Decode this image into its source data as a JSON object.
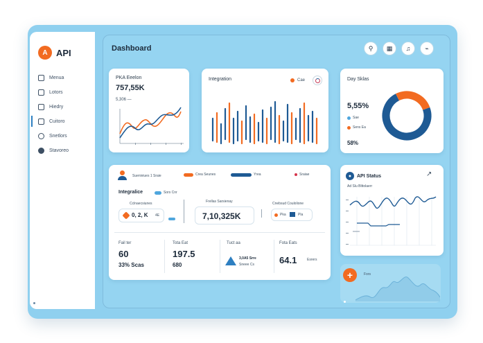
{
  "brand": {
    "logo_letter": "A",
    "name": "API"
  },
  "sidebar": {
    "items": [
      {
        "label": "Menua",
        "icon": "home-icon"
      },
      {
        "label": "Lotors",
        "icon": "layers-icon"
      },
      {
        "label": "Hiedry",
        "icon": "history-icon"
      },
      {
        "label": "Cuitoro",
        "icon": "chart-icon"
      },
      {
        "label": "Snetlors",
        "icon": "settings-icon"
      },
      {
        "label": "Stavoreo",
        "icon": "user-icon"
      }
    ]
  },
  "header": {
    "title": "Dashboard",
    "icons": [
      {
        "name": "profile-icon",
        "glyph": "⚲"
      },
      {
        "name": "apps-icon",
        "glyph": "▦"
      },
      {
        "name": "notification-icon",
        "glyph": "♫"
      },
      {
        "name": "activity-icon",
        "glyph": "⌁"
      }
    ]
  },
  "kpi_card": {
    "title": "PKA Eeelon",
    "value": "757,55K",
    "sub": "5,306 —"
  },
  "integration_card": {
    "title": "Integration",
    "legend": "Cae"
  },
  "daily_card": {
    "title": "Day Sklas",
    "percent": "5,55%",
    "legend": [
      "Sae",
      "Sens Ea"
    ],
    "bottom": "58%",
    "donut": {
      "orange_fraction": 0.27,
      "blue_fraction": 0.73
    }
  },
  "wide_card": {
    "legend_top": [
      "Sueniviues 1 Sraie",
      "Crea Seunes",
      "Yrea",
      "Sraiae"
    ],
    "section_title": "Integralice",
    "section_badge": "Sors Cnr",
    "metric_left": {
      "label": "Cclnaecsiunes",
      "value": "0, 2, K",
      "tag": "4E"
    },
    "metric_mid": {
      "label": "Frellas Sarsienay",
      "value": "7,10,325K"
    },
    "metric_right": {
      "label": "Cnebsud Coulolione",
      "tag1": "Pka",
      "tag2": "Pla"
    },
    "stats": [
      {
        "label": "Fail ter",
        "value": "60",
        "sub": "33% Scas"
      },
      {
        "label": "Tota Eat",
        "value": "197.5",
        "sub": "680"
      },
      {
        "label": "Tuct aa",
        "value": "",
        "sub": "3,0A5 Srre",
        "sub2": "Sneee Cs"
      },
      {
        "label": "Fota Eats",
        "value": "64.1",
        "sub": "Esrers"
      }
    ]
  },
  "api_card": {
    "title": "API Status",
    "subtitle": "Ad Slu Blttolaerr"
  },
  "bottom_card": {
    "label": "Fors",
    "icon": "add-icon"
  },
  "colors": {
    "orange": "#f26b21",
    "blue": "#1e5a94",
    "light_blue": "#4fa6dd",
    "panel": "#95d4f1"
  }
}
